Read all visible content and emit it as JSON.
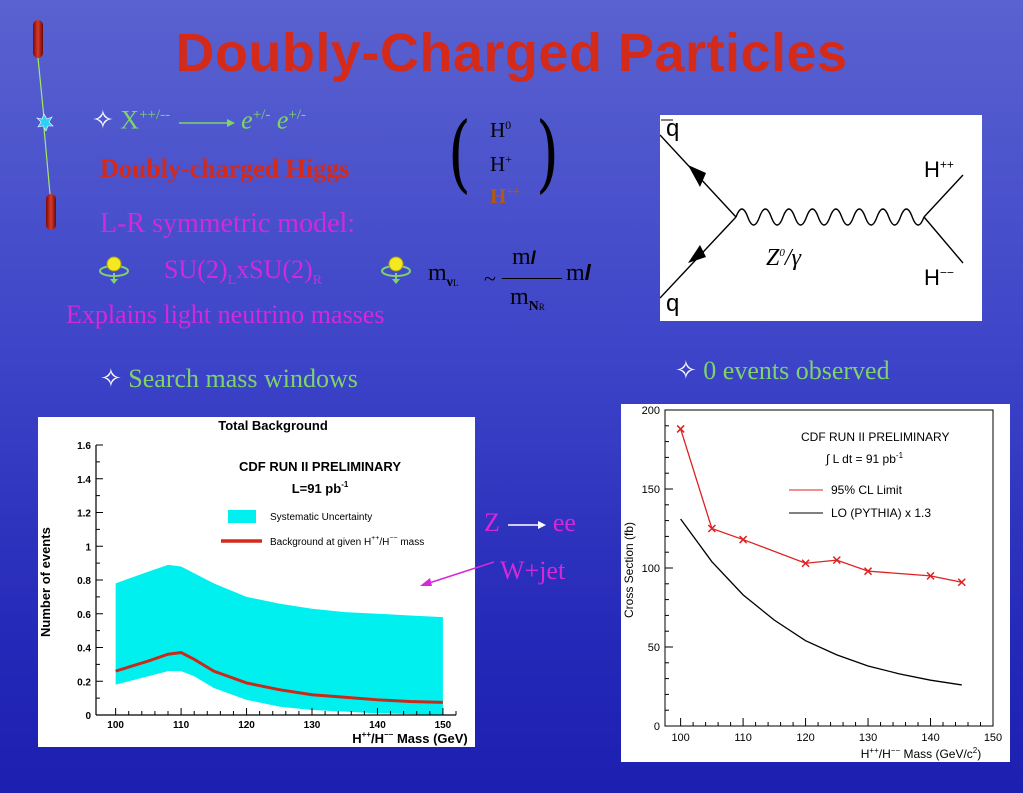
{
  "slide": {
    "title": "Doubly-Charged Particles"
  },
  "bullets": {
    "decay_left": "X",
    "decay_left_sup": "++/--",
    "decay_right_e1": "e",
    "decay_right_sup1": "+/-",
    "decay_right_e2": "e",
    "decay_right_sup2": "+/-",
    "higgs": "Doubly-charged Higgs",
    "lr_model": "L-R symmetric model:",
    "su2_left": "SU(2)",
    "su2_left_sub": "L",
    "su2_x": "xSU(2)",
    "su2_right_sub": "R",
    "neutrino": "Explains light neutrino masses",
    "search": "Search mass windows",
    "events": "0 events observed"
  },
  "matrix": {
    "row1": "H",
    "row1_sup": "0",
    "row2": "H",
    "row2_sup": "+",
    "row3": "H",
    "row3_sup": "++"
  },
  "formula": {
    "lhs": "m",
    "lhs_sub": "ν",
    "lhs_subsub": "L",
    "tilde": "~",
    "num": "m",
    "num_sub": "l",
    "den": "m",
    "den_sub": "N",
    "den_subsub": "R",
    "rhs": "m",
    "rhs_sub": "l"
  },
  "feynman": {
    "q_top": "q",
    "q_bot": "q",
    "h_top": "H",
    "h_top_sup": "++",
    "h_bot": "H",
    "h_bot_sup": "−−",
    "boson": "Z",
    "boson_sup": "0",
    "boson_rest": "/γ"
  },
  "annotation": {
    "z": "Z",
    "ee": "ee",
    "wjet": "W+jet"
  },
  "colors": {
    "title": "#d42a1a",
    "green": "#7ed36a",
    "magenta": "#d528d8",
    "band": "#00f0f0",
    "bg_line": "#d42a1a"
  },
  "chart_data": [
    {
      "type": "area",
      "title": "Total Background",
      "annotation1": "CDF RUN II PRELIMINARY",
      "annotation2": "L=91 pb",
      "annotation2_sup": "-1",
      "xlabel": "H",
      "xlabel_sup": "++",
      "xlabel_mid": "/H",
      "xlabel_sup2": "−−",
      "xlabel_rest": " Mass (GeV)",
      "ylabel": "Number of events",
      "xlim": [
        97,
        152
      ],
      "ylim": [
        0,
        1.6
      ],
      "x_ticks": [
        "100",
        "110",
        "120",
        "130",
        "140",
        "150"
      ],
      "y_ticks": [
        "0",
        "0.2",
        "0.4",
        "0.6",
        "0.8",
        "1",
        "1.2",
        "1.4",
        "1.6"
      ],
      "legend": [
        {
          "name": "Systematic Uncertainty",
          "color": "#00f0f0"
        },
        {
          "name": "Background at given H",
          "sup": "++",
          "mid": "/H",
          "sup2": "−−",
          "rest": " mass",
          "color": "#d42a1a"
        }
      ],
      "x": [
        100,
        105,
        108,
        110,
        112,
        115,
        120,
        125,
        130,
        135,
        140,
        145,
        150
      ],
      "central": [
        0.26,
        0.32,
        0.36,
        0.37,
        0.33,
        0.26,
        0.19,
        0.15,
        0.12,
        0.105,
        0.09,
        0.08,
        0.075
      ],
      "upper": [
        0.78,
        0.85,
        0.89,
        0.88,
        0.84,
        0.78,
        0.7,
        0.66,
        0.63,
        0.61,
        0.6,
        0.59,
        0.58
      ],
      "lower": [
        0.18,
        0.23,
        0.26,
        0.26,
        0.23,
        0.16,
        0.09,
        0.05,
        0.03,
        0.02,
        0.01,
        0.005,
        0.0
      ]
    },
    {
      "type": "line",
      "annotation1": "CDF RUN II PRELIMINARY",
      "annotation2": "∫ L dt = 91 pb",
      "annotation2_sup": "-1",
      "xlabel": "H",
      "xlabel_sup": "++",
      "xlabel_mid": "/H",
      "xlabel_sup2": "−−",
      "xlabel_rest": " Mass (GeV/c",
      "xlabel_sup3": "2",
      "xlabel_end": ")",
      "ylabel": "Cross Section (fb)",
      "xlim": [
        97.5,
        150
      ],
      "ylim": [
        0,
        200
      ],
      "x_ticks": [
        "100",
        "110",
        "120",
        "130",
        "140",
        "150"
      ],
      "y_ticks": [
        "0",
        "50",
        "100",
        "150",
        "200"
      ],
      "series": [
        {
          "name": "95% CL Limit",
          "color": "#e02020",
          "x": [
            100,
            105,
            110,
            120,
            125,
            130,
            140,
            145
          ],
          "values": [
            188,
            125,
            118,
            103,
            105,
            98,
            95,
            91
          ]
        },
        {
          "name": "LO (PYTHIA) x 1.3",
          "color": "#000000",
          "x": [
            100,
            105,
            110,
            115,
            120,
            125,
            130,
            135,
            140,
            145
          ],
          "values": [
            131,
            104,
            83,
            67,
            54,
            45,
            38,
            33,
            29,
            26
          ]
        }
      ]
    }
  ]
}
